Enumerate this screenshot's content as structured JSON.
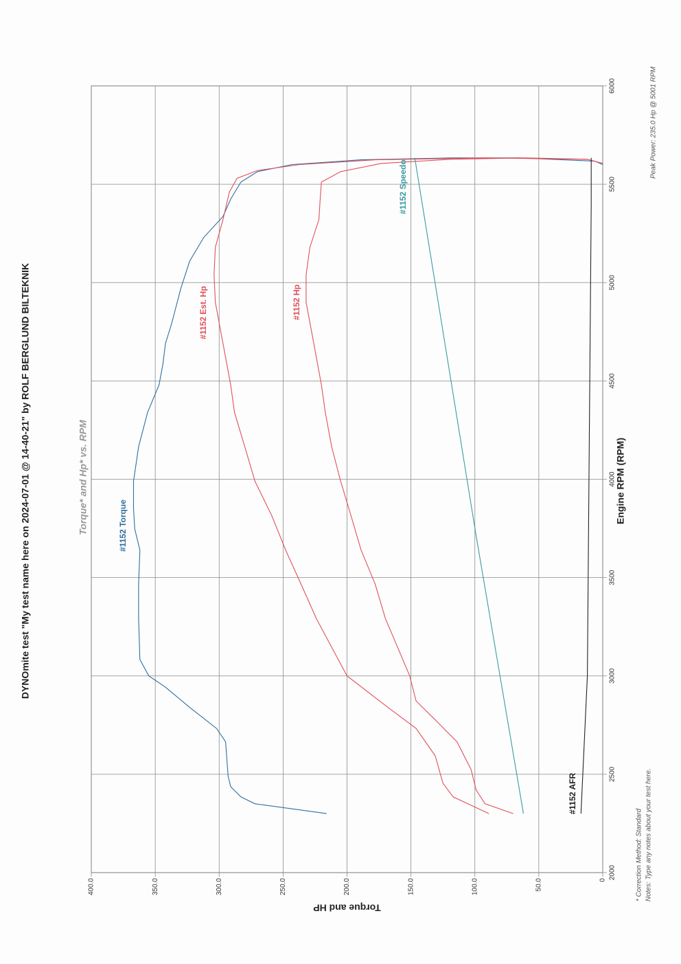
{
  "chart_data": {
    "type": "line",
    "title": "DYNOmite test \"My test name here on 2024-07-01 @ 14-40-21\" by ROLF BERGLUND BILTEKNIK",
    "subtitle": "Torque* and Hp* vs. RPM",
    "xlabel": "Engine RPM (RPM)",
    "ylabel": "Torque and HP",
    "annotations": [
      "* Correction Method: Standard",
      "Notes: Type any notes about your test here.",
      "Peak Power: 235.0 Hp @ 5001 RPM"
    ],
    "xlim": [
      2000,
      6000
    ],
    "xticks": [
      2000,
      2500,
      3000,
      3500,
      4000,
      4500,
      5000,
      5500,
      6000
    ],
    "ylim": [
      0,
      400
    ],
    "yticks": [
      0,
      {
        "value": 50,
        "label": "50.0"
      },
      {
        "value": 100,
        "label": "100.0"
      },
      {
        "value": 150,
        "label": "150.0"
      },
      {
        "value": 200,
        "label": "200.0"
      },
      {
        "value": 250,
        "label": "250.0"
      },
      {
        "value": 300,
        "label": "300.0"
      },
      {
        "value": 350,
        "label": "350.0"
      },
      {
        "value": 400,
        "label": "400.0"
      }
    ],
    "grid": true,
    "series": [
      {
        "name": "#1152 Torque",
        "color": "#2e6e9e",
        "x": [
          2300,
          2350,
          2385,
          2437,
          2490,
          2665,
          2733,
          2840,
          2943,
          3000,
          3083,
          3292,
          3467,
          3640,
          3747,
          3850,
          3990,
          4166,
          4340,
          4480,
          4585,
          4690,
          4795,
          4970,
          5110,
          5230,
          5336,
          5424,
          5511,
          5564,
          5600,
          5624,
          5634,
          5634,
          5617,
          5600
        ],
        "values": [
          216,
          272,
          283,
          291,
          293,
          295,
          302,
          323,
          342,
          355,
          362,
          363,
          363,
          362,
          366,
          367,
          367,
          363,
          356,
          347,
          344,
          342,
          337,
          330,
          323,
          312,
          297,
          291,
          283,
          270,
          243,
          189,
          119,
          65,
          6,
          0
        ]
      },
      {
        "name": "#1152 Est. Hp",
        "color": "#e0505a",
        "x": [
          2300,
          2385,
          2455,
          2594,
          2733,
          2840,
          3000,
          3292,
          3467,
          3640,
          3817,
          3990,
          4166,
          4340,
          4480,
          4620,
          4760,
          4900,
          5040,
          5180,
          5320,
          5460,
          5530,
          5570,
          5600,
          5624,
          5634,
          5627,
          5606
        ],
        "values": [
          89,
          117,
          125,
          131,
          146,
          168,
          200,
          224,
          236,
          248,
          259,
          272,
          280,
          288,
          291,
          295,
          299,
          303,
          304,
          303,
          297,
          292,
          286,
          270,
          237,
          178,
          92,
          12,
          0
        ]
      },
      {
        "name": "#1152 Hp",
        "color": "#e0505a",
        "x": [
          2300,
          2350,
          2420,
          2524,
          2665,
          2770,
          2873,
          3000,
          3292,
          3467,
          3640,
          3817,
          3990,
          4166,
          4340,
          4480,
          4620,
          4760,
          4900,
          5040,
          5180,
          5320,
          5424,
          5511,
          5564,
          5606,
          5627,
          5634,
          5627
        ],
        "values": [
          70,
          92,
          99,
          103,
          114,
          130,
          146,
          151,
          170,
          178,
          189,
          197,
          205,
          212,
          217,
          220,
          224,
          228,
          232,
          232,
          229,
          222,
          221,
          220,
          205,
          173,
          119,
          60,
          12
        ]
      },
      {
        "name": "#1152 Speedo",
        "color": "#3a9aa0",
        "x": [
          2300,
          3712,
          5634
        ],
        "values": [
          62,
          99,
          147
        ]
      },
      {
        "name": "#1152 AFR",
        "color": "#222222",
        "x": [
          2300,
          3000,
          5390,
          5634
        ],
        "values": [
          17,
          12,
          9,
          9
        ]
      }
    ]
  }
}
